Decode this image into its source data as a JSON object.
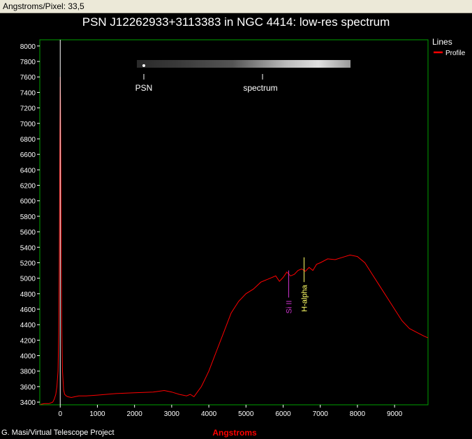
{
  "header": {
    "status_text": "Angstroms/Pixel: 33,5"
  },
  "footer": {
    "credit": "G. Masi/Virtual Telescope Project"
  },
  "colors": {
    "frame": "#00a000",
    "profile": "#ff0000",
    "si_line": "#cc33cc",
    "halpha_line": "#ffff66",
    "xlabel": "#ff0000"
  },
  "strip": {
    "labels": [
      "PSN",
      "spectrum"
    ]
  },
  "chart_data": {
    "type": "line",
    "title": "PSN J12262933+3113383 in NGC 4414: low-res spectrum",
    "xlabel": "Angstroms",
    "ylabel": "",
    "xlim": [
      -550,
      9900
    ],
    "ylim": [
      3365,
      8080
    ],
    "xticks": [
      0,
      1000,
      2000,
      3000,
      4000,
      5000,
      6000,
      7000,
      8000,
      9000
    ],
    "yticks": [
      3400,
      3600,
      3800,
      4000,
      4200,
      4400,
      4600,
      4800,
      5000,
      5200,
      5400,
      5600,
      5800,
      6000,
      6200,
      6400,
      6600,
      6800,
      7000,
      7200,
      7400,
      7600,
      7800,
      8000
    ],
    "grid": false,
    "legend": {
      "title": "Lines",
      "entries": [
        "Profile"
      ],
      "placement": "top-right"
    },
    "series": [
      {
        "name": "Profile",
        "x": [
          -530,
          -420,
          -300,
          -200,
          -160,
          -120,
          -90,
          -60,
          -40,
          -25,
          -15,
          -8,
          0,
          8,
          15,
          25,
          40,
          60,
          90,
          120,
          160,
          200,
          300,
          400,
          500,
          700,
          1000,
          1500,
          2000,
          2500,
          2800,
          3000,
          3200,
          3400,
          3500,
          3600,
          3800,
          3900,
          4000,
          4200,
          4400,
          4600,
          4800,
          5000,
          5200,
          5400,
          5600,
          5800,
          5900,
          6000,
          6100,
          6200,
          6300,
          6400,
          6500,
          6600,
          6700,
          6800,
          6900,
          7000,
          7200,
          7400,
          7600,
          7800,
          8000,
          8200,
          8400,
          8600,
          8800,
          9000,
          9200,
          9400,
          9600,
          9800,
          9900
        ],
        "y": [
          3370,
          3380,
          3380,
          3400,
          3440,
          3500,
          3600,
          3800,
          4300,
          5200,
          6300,
          6900,
          7600,
          7300,
          6500,
          5400,
          4400,
          3800,
          3560,
          3500,
          3480,
          3470,
          3460,
          3470,
          3480,
          3480,
          3490,
          3510,
          3520,
          3530,
          3550,
          3530,
          3500,
          3480,
          3500,
          3470,
          3600,
          3700,
          3800,
          4050,
          4300,
          4550,
          4700,
          4800,
          4860,
          4950,
          4990,
          5030,
          4960,
          5010,
          5080,
          5030,
          5050,
          5100,
          5120,
          5090,
          5140,
          5100,
          5180,
          5200,
          5250,
          5240,
          5270,
          5300,
          5280,
          5200,
          5050,
          4900,
          4750,
          4600,
          4450,
          4350,
          4300,
          4250,
          4230
        ]
      }
    ],
    "annotations": [
      {
        "label": "Si II",
        "x": 6150,
        "y_from": 4750,
        "y_to": 5100
      },
      {
        "label": "H-alpha",
        "x": 6563,
        "y_from": 4950,
        "y_to": 5270
      },
      {
        "label": "",
        "x": 0,
        "y_from": 3365,
        "y_to": 8080
      }
    ]
  }
}
